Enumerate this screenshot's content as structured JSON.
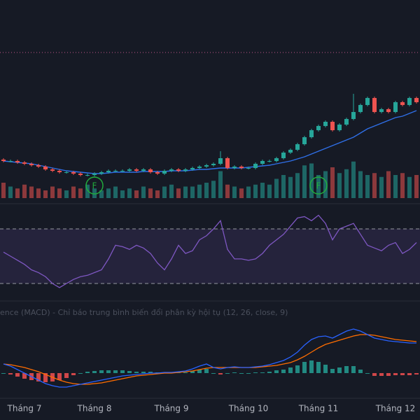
{
  "chart_data": {
    "type": "candlestick",
    "categories": [
      null,
      null,
      null,
      "Tháng 7",
      null,
      null,
      null,
      null,
      null,
      null,
      null,
      null,
      null,
      "Tháng 8",
      null,
      null,
      null,
      null,
      null,
      null,
      null,
      null,
      null,
      null,
      "Tháng 9",
      null,
      null,
      null,
      null,
      null,
      null,
      null,
      null,
      null,
      null,
      "Tháng 10",
      null,
      null,
      null,
      null,
      null,
      null,
      null,
      null,
      null,
      "Tháng 11",
      null,
      null,
      null,
      null,
      null,
      null,
      null,
      null,
      null,
      null,
      "Tháng 12",
      null,
      null,
      null
    ],
    "open": [
      31,
      30,
      30,
      29,
      28,
      27,
      26,
      24,
      23,
      22,
      22,
      21,
      20,
      20,
      21,
      22,
      23,
      23,
      23,
      24,
      23,
      24,
      22,
      21,
      23,
      24,
      23,
      24,
      25,
      26,
      27,
      28,
      32,
      25,
      26,
      25,
      25,
      28,
      30,
      30,
      32,
      36,
      38,
      42,
      47,
      52,
      55,
      58,
      52,
      56,
      60,
      65,
      70,
      75,
      65,
      67,
      65,
      72,
      70,
      75
    ],
    "high": [
      32,
      31,
      31,
      30,
      29,
      28,
      27,
      25,
      24,
      23,
      23,
      22,
      21,
      22,
      23,
      24,
      24,
      24,
      25,
      25,
      25,
      25,
      23,
      24,
      25,
      25,
      25,
      26,
      27,
      28,
      29,
      37,
      33,
      27,
      27,
      26,
      29,
      31,
      31,
      33,
      37,
      39,
      43,
      48,
      53,
      56,
      59,
      59,
      57,
      61,
      78,
      71,
      76,
      76,
      68,
      68,
      73,
      73,
      76,
      76
    ],
    "low": [
      29,
      29,
      28,
      27,
      26,
      25,
      23,
      22,
      21,
      21,
      20,
      19,
      19,
      19,
      20,
      21,
      22,
      22,
      22,
      22,
      22,
      21,
      20,
      20,
      22,
      22,
      22,
      23,
      24,
      25,
      26,
      27,
      24,
      24,
      24,
      24,
      24,
      27,
      29,
      29,
      31,
      35,
      37,
      41,
      46,
      51,
      54,
      51,
      51,
      55,
      59,
      64,
      69,
      64,
      64,
      64,
      64,
      69,
      69,
      71
    ],
    "close": [
      30,
      30,
      29,
      28,
      27,
      26,
      24,
      23,
      22,
      22,
      21,
      20,
      20,
      21,
      22,
      23,
      23,
      23,
      24,
      23,
      24,
      22,
      21,
      23,
      24,
      23,
      24,
      25,
      26,
      27,
      28,
      32,
      25,
      26,
      25,
      25,
      28,
      30,
      30,
      32,
      36,
      38,
      42,
      47,
      52,
      55,
      58,
      52,
      56,
      60,
      65,
      70,
      75,
      65,
      67,
      65,
      72,
      70,
      75,
      72
    ],
    "ma": [
      30,
      29.5,
      29,
      28.5,
      28,
      27,
      26,
      25,
      24,
      23,
      22.5,
      22,
      21.5,
      21,
      21,
      21.5,
      22,
      22,
      22,
      22,
      22.5,
      22.5,
      22.5,
      22.5,
      23,
      23,
      23,
      23.5,
      24,
      24,
      24.5,
      25,
      25,
      25,
      25,
      25.5,
      26,
      26.5,
      27,
      28,
      29,
      30,
      31.5,
      33,
      35,
      37,
      39,
      41,
      43,
      45,
      47,
      50,
      53,
      55,
      57,
      59,
      61,
      62,
      64,
      66
    ],
    "ylim": [
      0,
      120
    ],
    "price_line": 107.5,
    "up_color": "#26a69a",
    "down_color": "#ef5350",
    "ma_color": "#2f6fe8",
    "price_line_color": "#c2548a",
    "events": [
      null,
      null,
      null,
      null,
      null,
      null,
      null,
      null,
      null,
      null,
      null,
      null,
      null,
      "F",
      null,
      null,
      null,
      null,
      null,
      null,
      null,
      null,
      null,
      null,
      null,
      null,
      null,
      null,
      null,
      null,
      null,
      null,
      null,
      null,
      null,
      null,
      null,
      null,
      null,
      null,
      null,
      null,
      null,
      null,
      null,
      "F",
      null,
      null,
      null,
      null,
      null,
      null,
      null,
      null,
      null,
      null,
      null,
      null,
      null,
      null
    ],
    "event_color": "#22ab3c",
    "volume": [
      40,
      30,
      25,
      35,
      30,
      25,
      20,
      30,
      25,
      20,
      30,
      25,
      35,
      25,
      20,
      25,
      30,
      20,
      25,
      20,
      30,
      25,
      20,
      30,
      35,
      25,
      30,
      30,
      35,
      40,
      45,
      70,
      35,
      30,
      25,
      30,
      35,
      40,
      35,
      50,
      60,
      55,
      65,
      85,
      90,
      60,
      70,
      80,
      65,
      75,
      95,
      70,
      60,
      65,
      55,
      70,
      60,
      65,
      55,
      60
    ],
    "volume_lim": [
      0,
      100
    ],
    "rsi": [
      53,
      50,
      47,
      44,
      40,
      38,
      35,
      30,
      27,
      30,
      33,
      35,
      36,
      38,
      40,
      48,
      58,
      57,
      55,
      58,
      56,
      52,
      45,
      40,
      48,
      58,
      52,
      54,
      62,
      65,
      70,
      76,
      55,
      48,
      48,
      47,
      48,
      52,
      58,
      62,
      66,
      72,
      78,
      79,
      76,
      80,
      74,
      62,
      70,
      72,
      74,
      66,
      58,
      56,
      54,
      58,
      60,
      52,
      55,
      60
    ],
    "rsi_lim": [
      0,
      100
    ],
    "rsi_levels": [
      70,
      30
    ],
    "rsi_color": "#7e57c2",
    "macd_title": "ence (MACD) - Chỉ báo trung bình biến đổi phân kỳ hội tụ (12, 26, close, 9)",
    "macd": [
      13,
      10,
      5,
      0,
      -5,
      -10,
      -15,
      -18,
      -20,
      -20,
      -18,
      -16,
      -14,
      -12,
      -10,
      -8,
      -6,
      -4,
      -3,
      -2,
      -1,
      0,
      0,
      1,
      1,
      2,
      3,
      6,
      10,
      13,
      8,
      6,
      8,
      9,
      8,
      8,
      9,
      10,
      12,
      15,
      18,
      23,
      30,
      40,
      48,
      52,
      53,
      50,
      55,
      60,
      63,
      60,
      55,
      50,
      48,
      46,
      45,
      44,
      43,
      43
    ],
    "signal": [
      13,
      12,
      10,
      8,
      5,
      2,
      -2,
      -6,
      -10,
      -13,
      -15,
      -16,
      -16,
      -15,
      -14,
      -12,
      -10,
      -8,
      -6,
      -4,
      -3,
      -2,
      -1,
      0,
      0,
      1,
      2,
      3,
      5,
      7,
      8,
      8,
      8,
      8,
      8,
      8,
      8,
      9,
      10,
      11,
      13,
      15,
      19,
      24,
      30,
      36,
      41,
      44,
      47,
      50,
      53,
      55,
      55,
      54,
      52,
      50,
      48,
      47,
      46,
      45
    ],
    "histogram": [
      0,
      -2,
      -5,
      -8,
      -10,
      -12,
      -13,
      -12,
      -10,
      -7,
      -3,
      0,
      2,
      3,
      4,
      4,
      4,
      4,
      3,
      2,
      2,
      2,
      1,
      1,
      1,
      1,
      1,
      3,
      5,
      6,
      0,
      -2,
      0,
      1,
      0,
      0,
      1,
      1,
      2,
      4,
      5,
      8,
      11,
      16,
      18,
      16,
      12,
      6,
      8,
      10,
      10,
      5,
      0,
      -4,
      -4,
      -4,
      -3,
      -3,
      -3,
      -2
    ],
    "macd_lim": [
      -100,
      100
    ],
    "macd_color": "#2962ff",
    "signal_color": "#ff6d00",
    "hist_up_color": "#26a69a",
    "hist_down_color": "#ff5252"
  }
}
